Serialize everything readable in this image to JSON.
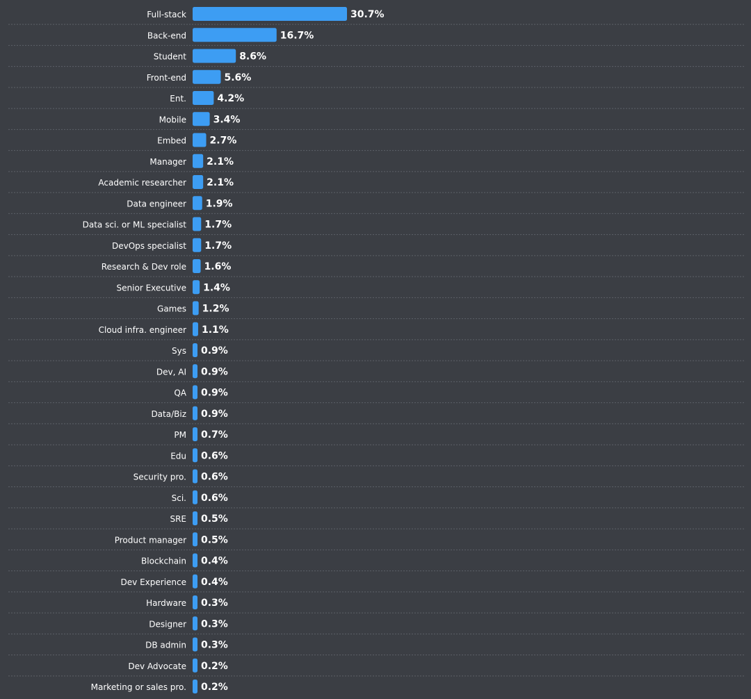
{
  "chart_data": {
    "type": "bar",
    "orientation": "horizontal",
    "bar_color": "#3d9df3",
    "background_color": "#3b3e44",
    "text_color": "#ffffff",
    "categories": [
      "Full-stack",
      "Back-end",
      "Student",
      "Front-end",
      "Ent.",
      "Mobile",
      "Embed",
      "Manager",
      "Academic researcher",
      "Data engineer",
      "Data sci. or ML specialist",
      "DevOps specialist",
      "Research & Dev role",
      "Senior Executive",
      "Games",
      "Cloud infra. engineer",
      "Sys",
      "Dev, AI",
      "QA",
      "Data/Biz",
      "PM",
      "Edu",
      "Security pro.",
      "Sci.",
      "SRE",
      "Product manager",
      "Blockchain",
      "Dev Experience",
      "Hardware",
      "Designer",
      "DB admin",
      "Dev Advocate",
      "Marketing or sales pro."
    ],
    "values": [
      30.7,
      16.7,
      8.6,
      5.6,
      4.2,
      3.4,
      2.7,
      2.1,
      2.1,
      1.9,
      1.7,
      1.7,
      1.6,
      1.4,
      1.2,
      1.1,
      0.9,
      0.9,
      0.9,
      0.9,
      0.7,
      0.6,
      0.6,
      0.6,
      0.5,
      0.5,
      0.4,
      0.4,
      0.3,
      0.3,
      0.3,
      0.2,
      0.2
    ],
    "value_labels": [
      "30.7%",
      "16.7%",
      "8.6%",
      "5.6%",
      "4.2%",
      "3.4%",
      "2.7%",
      "2.1%",
      "2.1%",
      "1.9%",
      "1.7%",
      "1.7%",
      "1.6%",
      "1.4%",
      "1.2%",
      "1.1%",
      "0.9%",
      "0.9%",
      "0.9%",
      "0.9%",
      "0.7%",
      "0.6%",
      "0.6%",
      "0.6%",
      "0.5%",
      "0.5%",
      "0.4%",
      "0.4%",
      "0.3%",
      "0.3%",
      "0.3%",
      "0.2%",
      "0.2%"
    ],
    "unit": "%",
    "xlim": [
      0,
      30.7
    ],
    "title": "",
    "xlabel": "",
    "ylabel": ""
  }
}
